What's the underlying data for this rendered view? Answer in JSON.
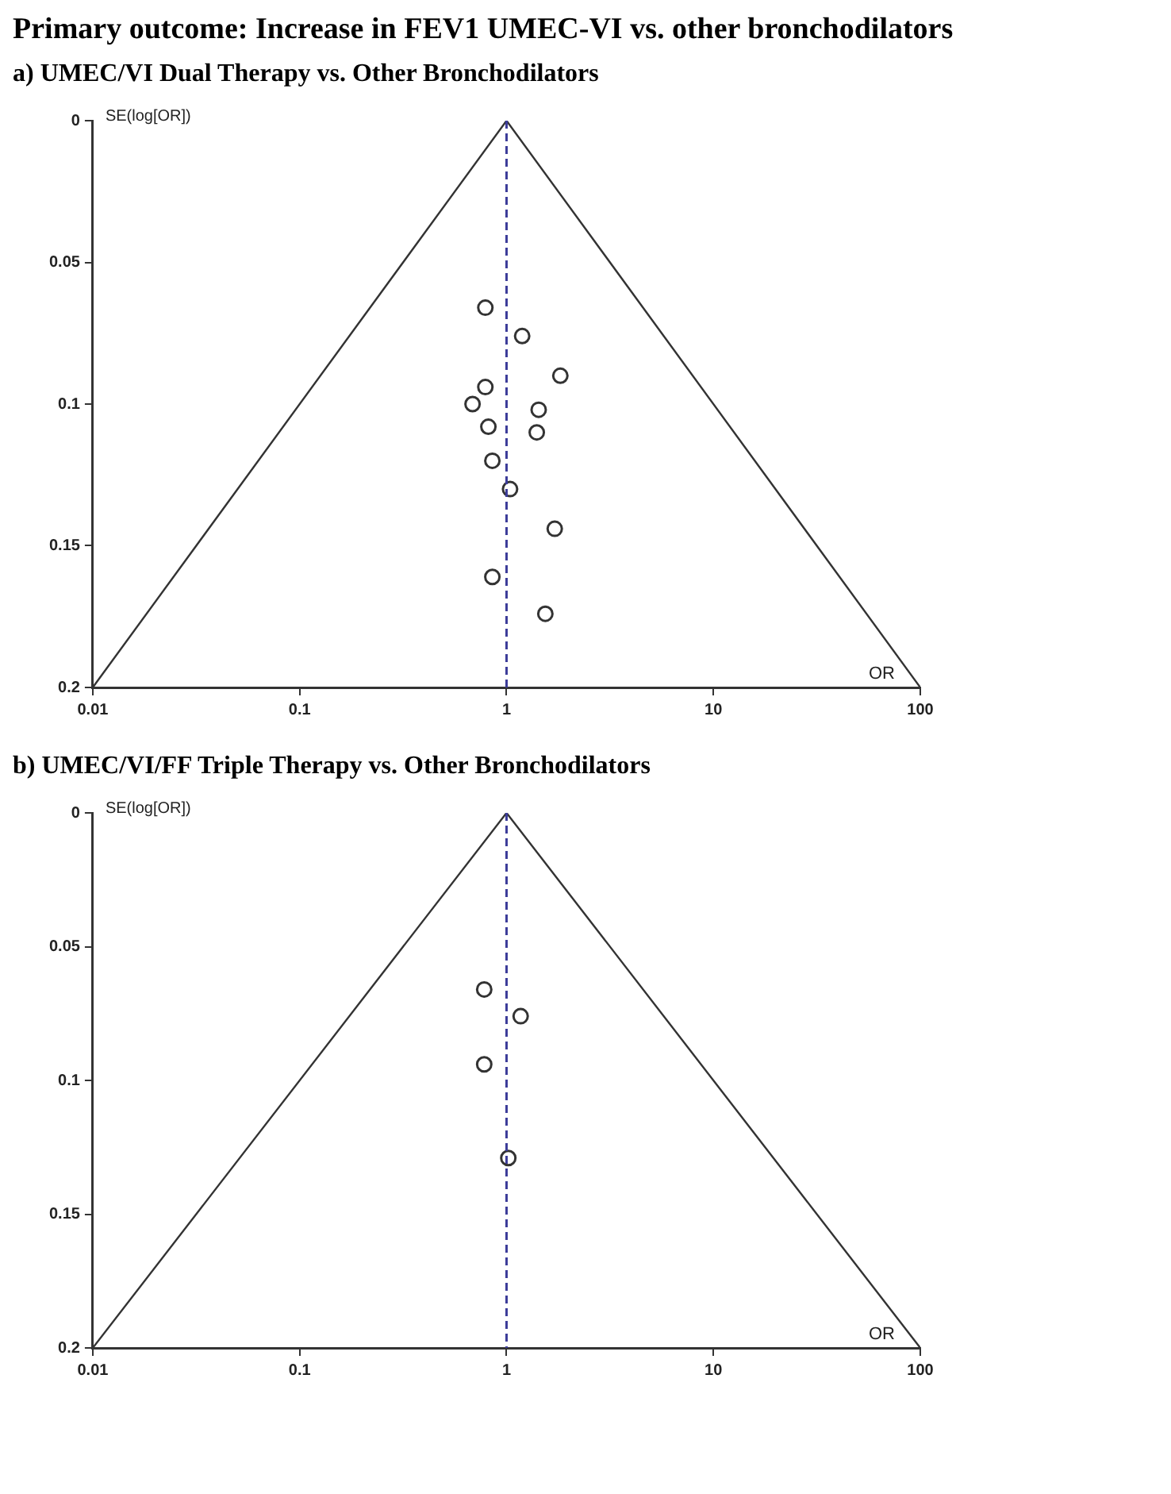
{
  "chart_data": [
    {
      "type": "scatter",
      "title": "Primary outcome: Increase in FEV1 UMEC-VI vs. other bronchodilators",
      "subtitle": "a) UMEC/VI Dual Therapy vs. Other Bronchodilators",
      "xlabel": "OR",
      "ylabel": "SE(log[OR])",
      "log": "x",
      "xlim": [
        0.01,
        100
      ],
      "xticks": [
        0.01,
        0.1,
        1,
        10,
        100
      ],
      "ylim": [
        0.2,
        0
      ],
      "yticks": [
        0,
        0.05,
        0.1,
        0.15,
        0.2
      ],
      "grid": false,
      "legend": false,
      "marker": "circle",
      "series": [
        {
          "color": "#333333",
          "x": [
            0.79,
            1.19,
            1.82,
            0.79,
            0.685,
            1.43,
            0.817,
            1.4,
            0.854,
            1.04,
            1.71,
            0.854,
            1.54
          ],
          "values": [
            0.066,
            0.076,
            0.09,
            0.094,
            0.1,
            0.102,
            0.108,
            0.11,
            0.12,
            0.13,
            0.144,
            0.161,
            0.174
          ]
        },
        {
          "type": "line",
          "color": "#333333",
          "marker": "none",
          "x": [
            0.01,
            1,
            100
          ],
          "values": [
            0.2,
            0,
            0.2
          ]
        }
      ],
      "ref_lines": [
        {
          "axis": "x",
          "value": 1,
          "color": "#3c3c99",
          "line_style": "dashed"
        }
      ]
    },
    {
      "type": "scatter",
      "title": "b)  UMEC/VI/FF Triple Therapy vs. Other Bronchodilators",
      "xlabel": "OR",
      "ylabel": "SE(log[OR])",
      "log": "x",
      "xlim": [
        0.01,
        100
      ],
      "xticks": [
        0.01,
        0.1,
        1,
        10,
        100
      ],
      "ylim": [
        0.2,
        0
      ],
      "yticks": [
        0,
        0.05,
        0.1,
        0.15,
        0.2
      ],
      "grid": false,
      "legend": false,
      "marker": "circle",
      "series": [
        {
          "color": "#333333",
          "x": [
            0.78,
            1.17,
            0.78,
            1.02
          ],
          "values": [
            0.066,
            0.076,
            0.094,
            0.129
          ]
        },
        {
          "type": "line",
          "color": "#333333",
          "marker": "none",
          "x": [
            0.01,
            1,
            100
          ],
          "values": [
            0.2,
            0,
            0.2
          ]
        }
      ],
      "ref_lines": [
        {
          "axis": "x",
          "value": 1,
          "color": "#3c3c99",
          "line_style": "dashed"
        }
      ]
    }
  ]
}
